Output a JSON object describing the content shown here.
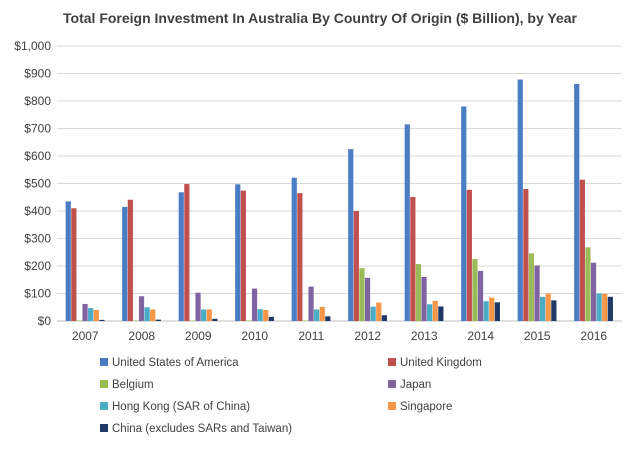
{
  "chart_data": {
    "type": "bar",
    "title": "Total Foreign Investment In Australia By Country Of Origin  ($ Billion),  by Year",
    "xlabel": "",
    "ylabel": "",
    "ylim": [
      0,
      1000
    ],
    "yticks": [
      0,
      100,
      200,
      300,
      400,
      500,
      600,
      700,
      800,
      900,
      1000
    ],
    "ytick_labels": [
      "$0",
      "$100",
      "$200",
      "$300",
      "$400",
      "$500",
      "$600",
      "$700",
      "$800",
      "$900",
      "$1,000"
    ],
    "grid": true,
    "legend_position": "bottom",
    "categories": [
      "2007",
      "2008",
      "2009",
      "2010",
      "2011",
      "2012",
      "2013",
      "2014",
      "2015",
      "2016"
    ],
    "series": [
      {
        "name": "United States of America",
        "color": "#4a7dc4",
        "values": [
          435,
          415,
          468,
          497,
          521,
          625,
          715,
          780,
          878,
          862
        ]
      },
      {
        "name": "United Kingdom",
        "color": "#c0504d",
        "values": [
          410,
          441,
          498,
          474,
          465,
          400,
          451,
          477,
          480,
          514
        ]
      },
      {
        "name": "Belgium",
        "color": "#9bbb59",
        "values": [
          2,
          2,
          2,
          2,
          2,
          192,
          207,
          225,
          246,
          268
        ]
      },
      {
        "name": "Japan",
        "color": "#8064a2",
        "values": [
          62,
          90,
          103,
          118,
          125,
          157,
          160,
          182,
          202,
          212
        ]
      },
      {
        "name": "Hong Kong (SAR of China)",
        "color": "#4bacc6",
        "values": [
          47,
          50,
          42,
          43,
          42,
          52,
          61,
          72,
          88,
          100
        ]
      },
      {
        "name": "Singapore",
        "color": "#f79646",
        "values": [
          40,
          42,
          42,
          40,
          51,
          67,
          73,
          85,
          100,
          99
        ]
      },
      {
        "name": "China (excludes SARs and Taiwan)",
        "color": "#1f3864",
        "values": [
          4,
          5,
          8,
          15,
          17,
          21,
          53,
          68,
          75,
          88
        ]
      }
    ]
  }
}
